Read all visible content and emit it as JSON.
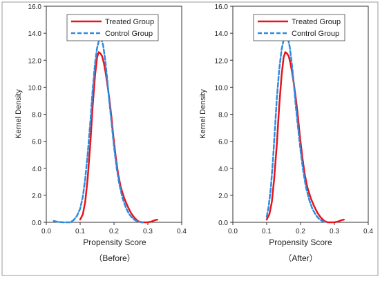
{
  "panels": [
    {
      "caption": "（Before）",
      "chart_data": {
        "type": "line",
        "xlabel": "Propensity Score",
        "ylabel": "Kernel Density",
        "xlim": [
          0.0,
          0.4
        ],
        "ylim": [
          0.0,
          16.0
        ],
        "xticks": [
          "0.0",
          "0.1",
          "0.2",
          "0.3",
          "0.4"
        ],
        "yticks": [
          "0.0",
          "2.0",
          "4.0",
          "6.0",
          "8.0",
          "10.0",
          "12.0",
          "14.0",
          "16.0"
        ],
        "grid": false,
        "legend_position": "top",
        "series": [
          {
            "name": "Treated Group",
            "color": "#e8141b",
            "style": "solid",
            "x": [
              0.1,
              0.108,
              0.115,
              0.122,
              0.13,
              0.137,
              0.144,
              0.15,
              0.155,
              0.16,
              0.165,
              0.17,
              0.175,
              0.18,
              0.186,
              0.192,
              0.198,
              0.205,
              0.212,
              0.22,
              0.23,
              0.24,
              0.25,
              0.26,
              0.27,
              0.28,
              0.29,
              0.3,
              0.31,
              0.32,
              0.328
            ],
            "y": [
              0.2,
              0.6,
              1.5,
              3.2,
              5.8,
              8.6,
              10.9,
              12.2,
              12.6,
              12.5,
              12.3,
              11.8,
              11.1,
              10.3,
              9.2,
              7.9,
              6.4,
              4.9,
              3.6,
              2.6,
              1.8,
              1.2,
              0.7,
              0.35,
              0.1,
              0.0,
              0.0,
              0.0,
              0.05,
              0.15,
              0.2
            ]
          },
          {
            "name": "Control Group",
            "color": "#2e8bdf",
            "style": "dashed",
            "x": [
              0.022,
              0.03,
              0.04,
              0.05,
              0.06,
              0.07,
              0.08,
              0.09,
              0.1,
              0.108,
              0.115,
              0.122,
              0.13,
              0.137,
              0.144,
              0.15,
              0.156,
              0.162,
              0.168,
              0.174,
              0.18,
              0.186,
              0.193,
              0.2,
              0.208,
              0.216,
              0.225,
              0.235,
              0.245,
              0.255,
              0.265,
              0.275,
              0.285
            ],
            "y": [
              0.1,
              0.05,
              0.02,
              0.0,
              0.0,
              0.0,
              0.15,
              0.45,
              1.0,
              1.9,
              3.2,
              5.0,
              7.4,
              9.8,
              11.8,
              12.9,
              13.5,
              13.6,
              13.1,
              12.0,
              10.6,
              9.0,
              7.3,
              5.6,
              4.0,
              2.8,
              1.8,
              1.1,
              0.6,
              0.3,
              0.12,
              0.04,
              0.0
            ]
          }
        ]
      }
    },
    {
      "caption": "（After）",
      "chart_data": {
        "type": "line",
        "xlabel": "Propensity Score",
        "ylabel": "Kernel Density",
        "xlim": [
          0.0,
          0.4
        ],
        "ylim": [
          0.0,
          16.0
        ],
        "xticks": [
          "0.0",
          "0.1",
          "0.2",
          "0.3",
          "0.4"
        ],
        "yticks": [
          "0.0",
          "2.0",
          "4.0",
          "6.0",
          "8.0",
          "10.0",
          "12.0",
          "14.0",
          "16.0"
        ],
        "grid": false,
        "legend_position": "top",
        "series": [
          {
            "name": "Treated Group",
            "color": "#e8141b",
            "style": "solid",
            "x": [
              0.1,
              0.108,
              0.115,
              0.122,
              0.13,
              0.137,
              0.144,
              0.15,
              0.155,
              0.16,
              0.165,
              0.17,
              0.175,
              0.18,
              0.186,
              0.192,
              0.198,
              0.205,
              0.212,
              0.22,
              0.23,
              0.24,
              0.25,
              0.26,
              0.27,
              0.28,
              0.29,
              0.3,
              0.31,
              0.32,
              0.328
            ],
            "y": [
              0.2,
              0.6,
              1.5,
              3.2,
              5.8,
              8.6,
              10.9,
              12.2,
              12.6,
              12.5,
              12.3,
              11.8,
              11.1,
              10.3,
              9.2,
              7.9,
              6.4,
              4.9,
              3.6,
              2.6,
              1.8,
              1.2,
              0.7,
              0.35,
              0.1,
              0.0,
              0.0,
              0.0,
              0.05,
              0.15,
              0.2
            ]
          },
          {
            "name": "Control Group",
            "color": "#2e8bdf",
            "style": "dashed",
            "x": [
              0.1,
              0.106,
              0.112,
              0.118,
              0.124,
              0.13,
              0.137,
              0.144,
              0.15,
              0.156,
              0.162,
              0.168,
              0.174,
              0.18,
              0.186,
              0.193,
              0.2,
              0.208,
              0.216,
              0.225,
              0.235,
              0.245,
              0.255,
              0.265,
              0.275
            ],
            "y": [
              0.4,
              1.2,
              2.5,
              4.4,
              6.8,
              9.2,
              11.3,
              12.8,
              13.5,
              13.8,
              13.7,
              13.0,
              11.8,
              10.3,
              8.6,
              6.9,
              5.3,
              3.8,
              2.6,
              1.7,
              1.0,
              0.55,
              0.25,
              0.08,
              0.0
            ]
          }
        ]
      }
    }
  ]
}
